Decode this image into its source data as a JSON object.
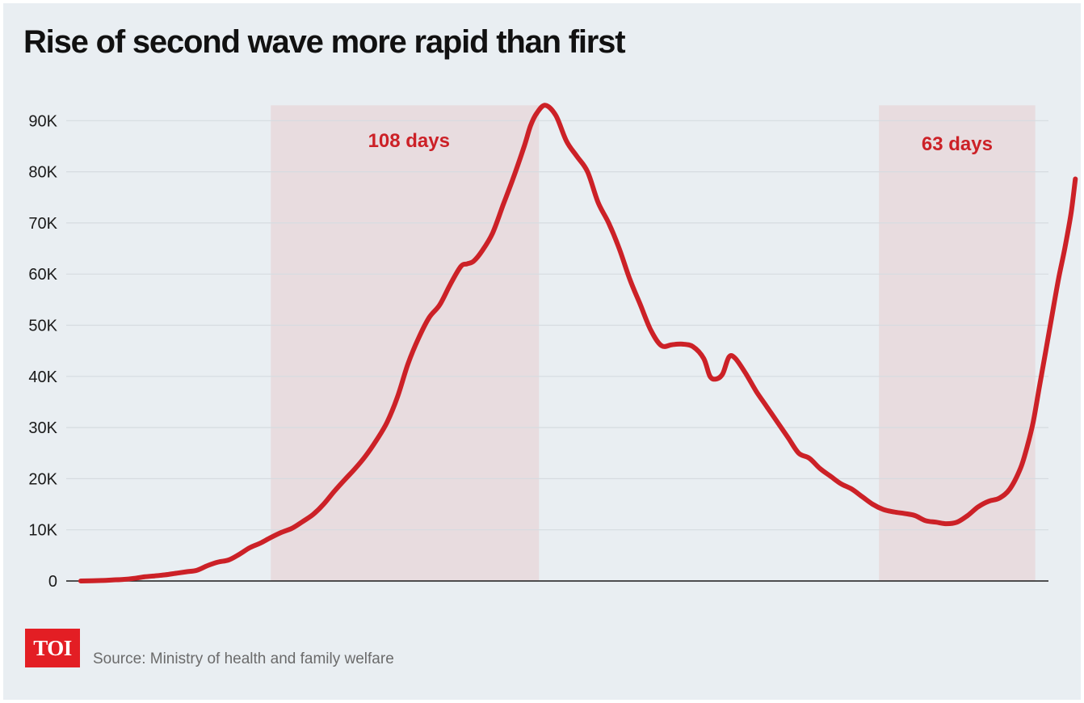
{
  "title": "Rise of second wave more rapid than first",
  "source": "Source: Ministry of health and family welfare",
  "logo_text": "TOI",
  "colors": {
    "background": "#e9eef2",
    "line": "#cc2127",
    "band": "#e8dcdf",
    "grid": "#d6dbe0",
    "axis": "#1a1a1a",
    "logo": "#e31e24"
  },
  "chart_data": {
    "type": "line",
    "title": "Rise of second wave more rapid than first",
    "xlabel": "",
    "ylabel": "",
    "x_range": [
      0,
      451
    ],
    "ylim": [
      0,
      93000
    ],
    "yticks": [
      0,
      10000,
      20000,
      30000,
      40000,
      50000,
      60000,
      70000,
      80000,
      90000
    ],
    "ytick_labels": [
      "0",
      "10K",
      "20K",
      "30K",
      "40K",
      "50K",
      "60K",
      "70K",
      "80K",
      "90K"
    ],
    "grid": true,
    "shaded_periods": [
      {
        "label": "108 days",
        "start": 90,
        "end": 217
      },
      {
        "label": "63 days",
        "start": 378,
        "end": 452
      }
    ],
    "series": [
      {
        "points": [
          [
            0,
            0
          ],
          [
            10,
            100
          ],
          [
            15,
            200
          ],
          [
            20,
            300
          ],
          [
            25,
            500
          ],
          [
            30,
            800
          ],
          [
            35,
            1000
          ],
          [
            40,
            1200
          ],
          [
            45,
            1500
          ],
          [
            50,
            1800
          ],
          [
            55,
            2100
          ],
          [
            60,
            3000
          ],
          [
            65,
            3700
          ],
          [
            70,
            4100
          ],
          [
            75,
            5200
          ],
          [
            80,
            6500
          ],
          [
            85,
            7400
          ],
          [
            90,
            8500
          ],
          [
            95,
            9500
          ],
          [
            100,
            10300
          ],
          [
            105,
            11600
          ],
          [
            110,
            13000
          ],
          [
            115,
            15000
          ],
          [
            120,
            17500
          ],
          [
            125,
            19800
          ],
          [
            130,
            22000
          ],
          [
            135,
            24500
          ],
          [
            140,
            27500
          ],
          [
            145,
            31000
          ],
          [
            150,
            36000
          ],
          [
            155,
            42500
          ],
          [
            160,
            47500
          ],
          [
            165,
            51500
          ],
          [
            170,
            54000
          ],
          [
            175,
            58000
          ],
          [
            180,
            61500
          ],
          [
            183,
            62000
          ],
          [
            186,
            62500
          ],
          [
            190,
            64500
          ],
          [
            195,
            68000
          ],
          [
            200,
            73500
          ],
          [
            205,
            79000
          ],
          [
            210,
            85000
          ],
          [
            213,
            89000
          ],
          [
            216,
            91500
          ],
          [
            220,
            93000
          ],
          [
            225,
            91000
          ],
          [
            230,
            86000
          ],
          [
            235,
            83000
          ],
          [
            240,
            80000
          ],
          [
            245,
            74000
          ],
          [
            250,
            70000
          ],
          [
            255,
            65000
          ],
          [
            260,
            59000
          ],
          [
            265,
            54000
          ],
          [
            270,
            49000
          ],
          [
            275,
            46000
          ],
          [
            280,
            46200
          ],
          [
            285,
            46300
          ],
          [
            290,
            45800
          ],
          [
            295,
            43500
          ],
          [
            298,
            40000
          ],
          [
            301,
            39500
          ],
          [
            304,
            40500
          ],
          [
            307,
            43800
          ],
          [
            310,
            43500
          ],
          [
            315,
            40500
          ],
          [
            320,
            37000
          ],
          [
            325,
            34000
          ],
          [
            330,
            31000
          ],
          [
            335,
            28000
          ],
          [
            340,
            25000
          ],
          [
            345,
            24000
          ],
          [
            350,
            22000
          ],
          [
            355,
            20500
          ],
          [
            360,
            19000
          ],
          [
            365,
            18000
          ],
          [
            370,
            16500
          ],
          [
            375,
            15000
          ],
          [
            380,
            14000
          ],
          [
            385,
            13500
          ],
          [
            390,
            13200
          ],
          [
            395,
            12800
          ],
          [
            400,
            11800
          ],
          [
            405,
            11500
          ],
          [
            410,
            11200
          ],
          [
            415,
            11500
          ],
          [
            420,
            12800
          ],
          [
            425,
            14500
          ],
          [
            430,
            15600
          ],
          [
            435,
            16200
          ],
          [
            440,
            18000
          ],
          [
            445,
            22000
          ],
          [
            448,
            26000
          ],
          [
            451,
            31000
          ],
          [
            454,
            38000
          ],
          [
            457,
            45000
          ],
          [
            460,
            52000
          ],
          [
            463,
            59000
          ],
          [
            466,
            65000
          ],
          [
            469,
            72000
          ],
          [
            471,
            78600
          ]
        ]
      }
    ]
  }
}
